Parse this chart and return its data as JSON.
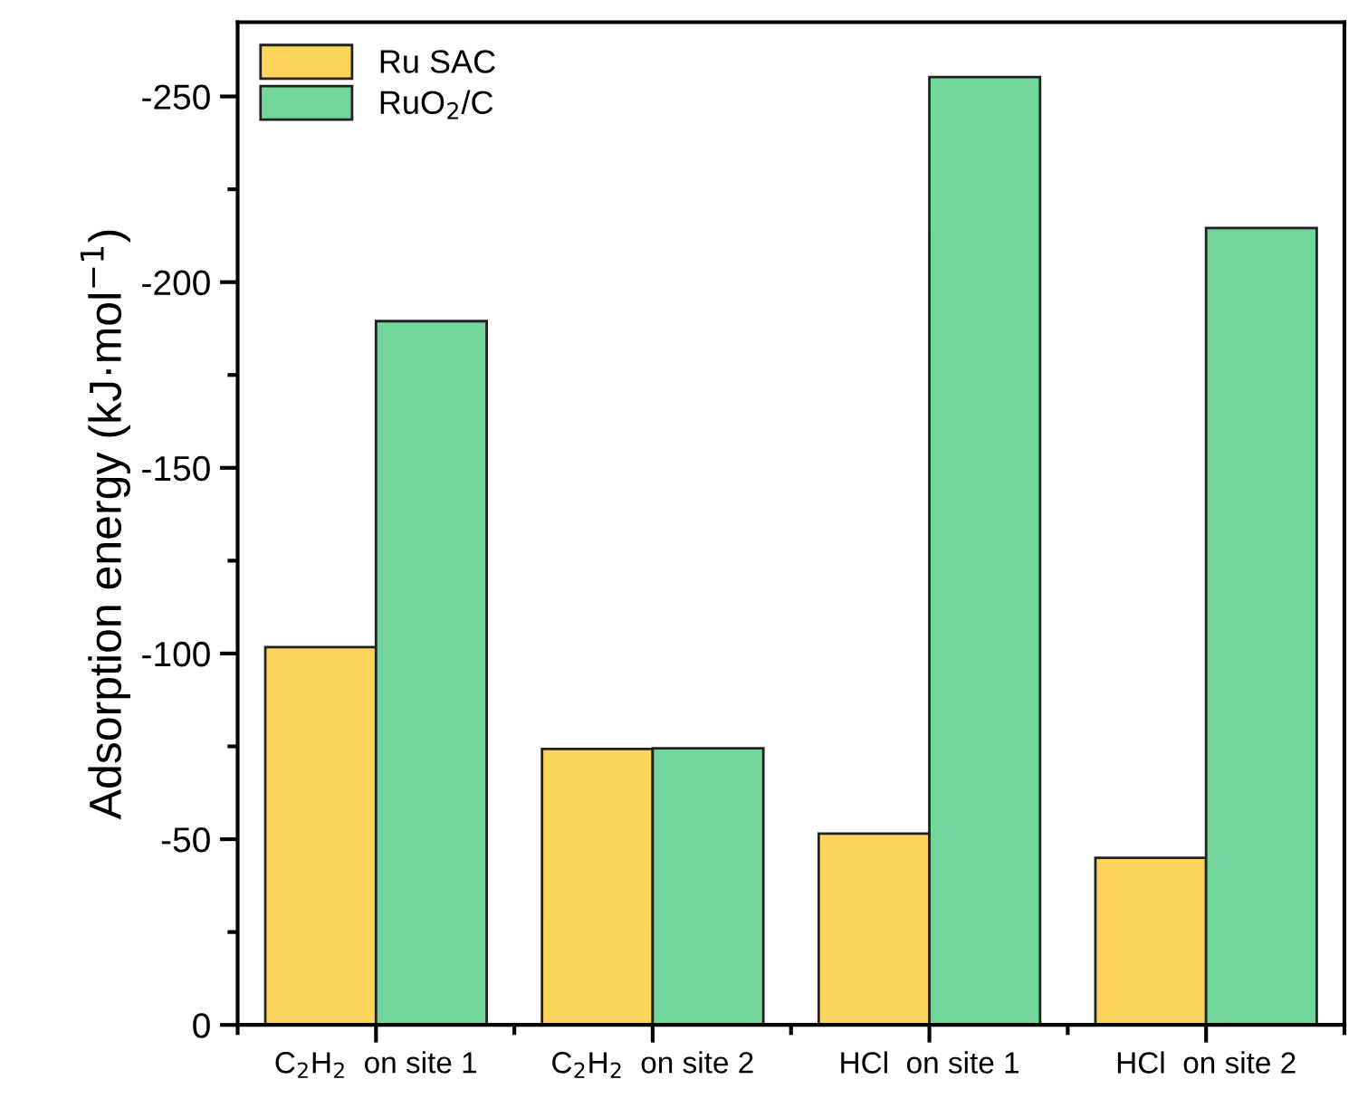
{
  "chart_data": {
    "type": "bar",
    "ylabel": "Adsorption energy (kJ·mol$^{−1}$)",
    "categories": [
      "C$_{2}$H$_{2}$  on site 1",
      "C$_{2}$H$_{2}$  on site 2",
      "HCl  on site 1",
      "HCl  on site 2"
    ],
    "series": [
      {
        "name": "Ru SAC",
        "color": "#ffd45a",
        "values": [
          -101.7,
          -74.3,
          -51.5,
          -45.0
        ]
      },
      {
        "name": "RuO$_{2}$/C",
        "color": "#72d59c",
        "values": [
          -189.5,
          -74.5,
          -255.2,
          -214.6
        ]
      }
    ],
    "ylim": [
      0,
      -270
    ],
    "yticks": [
      0,
      -50,
      -100,
      -150,
      -200,
      -250
    ],
    "grid": false,
    "legend": "top left"
  }
}
